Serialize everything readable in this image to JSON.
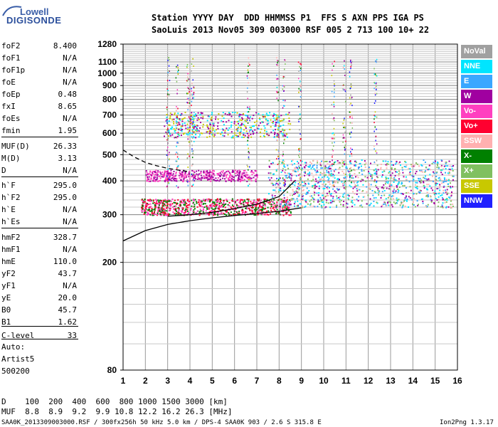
{
  "header": {
    "labels_line": "Station YYYY DAY  DDD HHMMSS P1  FFS S AXN PPS IGA PS",
    "values_line": "SaoLuis 2013 Nov05 309 003000 RSF 005 2 713 100 10+ 22"
  },
  "logo": {
    "line1": "Lowell",
    "line2": "DIGISONDE"
  },
  "parameters": [
    {
      "name": "foF2",
      "value": "8.400"
    },
    {
      "name": "foF1",
      "value": "N/A"
    },
    {
      "name": "foF1p",
      "value": "N/A"
    },
    {
      "name": "foE",
      "value": "N/A"
    },
    {
      "name": "foEp",
      "value": "0.48"
    },
    {
      "name": "fxI",
      "value": "8.65"
    },
    {
      "name": "foEs",
      "value": "N/A"
    },
    {
      "name": "fmin",
      "value": "1.95"
    },
    {
      "name": "MUF(D)",
      "value": "26.33"
    },
    {
      "name": "M(D)",
      "value": "3.13"
    },
    {
      "name": "D",
      "value": "N/A"
    },
    {
      "name": "h`F",
      "value": "295.0"
    },
    {
      "name": "h`F2",
      "value": "295.0"
    },
    {
      "name": "h`E",
      "value": "N/A"
    },
    {
      "name": "h`Es",
      "value": "N/A"
    },
    {
      "name": "hmF2",
      "value": "328.7"
    },
    {
      "name": "hmF1",
      "value": "N/A"
    },
    {
      "name": "hmE",
      "value": "110.0"
    },
    {
      "name": "yF2",
      "value": "43.7"
    },
    {
      "name": "yF1",
      "value": "N/A"
    },
    {
      "name": "yE",
      "value": "20.0"
    },
    {
      "name": "B0",
      "value": "45.7"
    },
    {
      "name": "B1",
      "value": "1.62"
    },
    {
      "name": "C-level",
      "value": "33"
    }
  ],
  "auto": {
    "line1": "Auto:",
    "line2": "Artist5",
    "line3": "500200"
  },
  "legend": [
    {
      "label": "NoVal",
      "color": "#a0a0a0"
    },
    {
      "label": "NNE",
      "color": "#00e5ff"
    },
    {
      "label": "E",
      "color": "#3aa7ff"
    },
    {
      "label": "W",
      "color": "#a000a0"
    },
    {
      "label": "Vo-",
      "color": "#ff40c0"
    },
    {
      "label": "Vo+",
      "color": "#ff0030"
    },
    {
      "label": "SSW",
      "color": "#ffb0b0"
    },
    {
      "label": "X-",
      "color": "#008000"
    },
    {
      "label": "X+",
      "color": "#80c060"
    },
    {
      "label": "SSE",
      "color": "#c8c800"
    },
    {
      "label": "NNW",
      "color": "#2020ff"
    }
  ],
  "footer": {
    "d_line": "D    100  200  400  600  800 1000 1500 3000 [km]",
    "muf_line": "MUF  8.8  8.9  9.2  9.9 10.8 12.2 16.2 26.3 [MHz]",
    "file_line": "SAA0K_2013309003000.RSF / 300fx256h 50 kHz 5.0 km / DPS-4 SAA0K 903 / 2.6 S 315.8 E",
    "version": "Ion2Png 1.3.17"
  },
  "chart_data": {
    "type": "scatter",
    "title": "",
    "xlabel": "",
    "ylabel": "",
    "xlim": [
      1,
      16
    ],
    "ylim": [
      80,
      1280
    ],
    "y_scale": "log",
    "x_ticks": [
      1,
      2,
      3,
      4,
      5,
      6,
      7,
      8,
      9,
      10,
      11,
      12,
      13,
      14,
      15,
      16
    ],
    "y_ticks": [
      80,
      200,
      300,
      400,
      500,
      600,
      700,
      800,
      900,
      1000,
      1100,
      1280
    ],
    "grid": true,
    "legend_position": "right",
    "echo_clusters": [
      {
        "name": "F-layer main",
        "x_range": [
          1.8,
          8.5
        ],
        "y_range": [
          300,
          345
        ],
        "dominant": [
          "Vo+",
          "X-",
          "Vo-"
        ]
      },
      {
        "name": "F-layer upper",
        "x_range": [
          2.0,
          7.0
        ],
        "y_range": [
          400,
          440
        ],
        "dominant": [
          "W",
          "Vo-"
        ]
      },
      {
        "name": "F multi-hop",
        "x_range": [
          2.8,
          8.5
        ],
        "y_range": [
          580,
          720
        ],
        "dominant": [
          "SSE",
          "W",
          "NNE"
        ]
      },
      {
        "name": "oblique spread",
        "x_range": [
          7.5,
          15.8
        ],
        "y_range": [
          320,
          480
        ],
        "dominant": [
          "NNE",
          "E",
          "W",
          "SSW",
          "X+"
        ]
      }
    ],
    "curves": [
      {
        "name": "ordinary trace",
        "style": "solid",
        "points": [
          [
            1,
            240
          ],
          [
            2,
            262
          ],
          [
            3,
            276
          ],
          [
            4,
            285
          ],
          [
            5,
            292
          ],
          [
            6,
            298
          ],
          [
            7,
            303
          ],
          [
            8,
            309
          ],
          [
            9,
            318
          ]
        ]
      },
      {
        "name": "extraordinary trace",
        "style": "solid",
        "points": [
          [
            3,
            296
          ],
          [
            4,
            300
          ],
          [
            5,
            306
          ],
          [
            6,
            316
          ],
          [
            7,
            328
          ],
          [
            8,
            350
          ],
          [
            8.7,
            400
          ]
        ]
      },
      {
        "name": "dashed trace",
        "style": "dashed",
        "points": [
          [
            1,
            520
          ],
          [
            1.5,
            490
          ],
          [
            2,
            468
          ],
          [
            2.5,
            455
          ],
          [
            3,
            445
          ],
          [
            3.5,
            438
          ],
          [
            4,
            432
          ]
        ]
      }
    ]
  }
}
